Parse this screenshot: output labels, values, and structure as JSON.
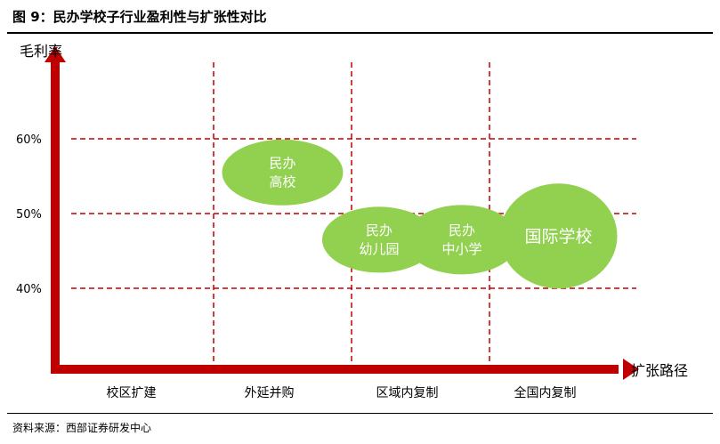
{
  "header": {
    "title": "图 9：民办学校子行业盈利性与扩张性对比"
  },
  "footer": {
    "source": "资料来源：西部证券研发中心"
  },
  "colors": {
    "axis": "#c00000",
    "gridline": "#c00000",
    "bubble": "#92d050",
    "bubble_text": "#ffffff"
  },
  "chart_data": {
    "type": "scatter",
    "xlabel": "扩张路径",
    "ylabel": "毛利率",
    "categories": [
      "校区扩建",
      "外延并购",
      "区域内复制",
      "全国内复制"
    ],
    "yticks": [
      "60%",
      "50%",
      "40%"
    ],
    "ytick_values": [
      60,
      50,
      40
    ],
    "grid": true,
    "points": [
      {
        "label_lines": [
          "民办",
          "高校"
        ],
        "x": 1.5,
        "y": 55.5
      },
      {
        "label_lines": [
          "民办",
          "幼儿园"
        ],
        "x": 2.2,
        "y": 46.5
      },
      {
        "label_lines": [
          "民办",
          "中小学"
        ],
        "x": 2.8,
        "y": 46.5
      },
      {
        "label_lines": [
          "国际学校"
        ],
        "x": 3.5,
        "y": 47
      }
    ]
  }
}
